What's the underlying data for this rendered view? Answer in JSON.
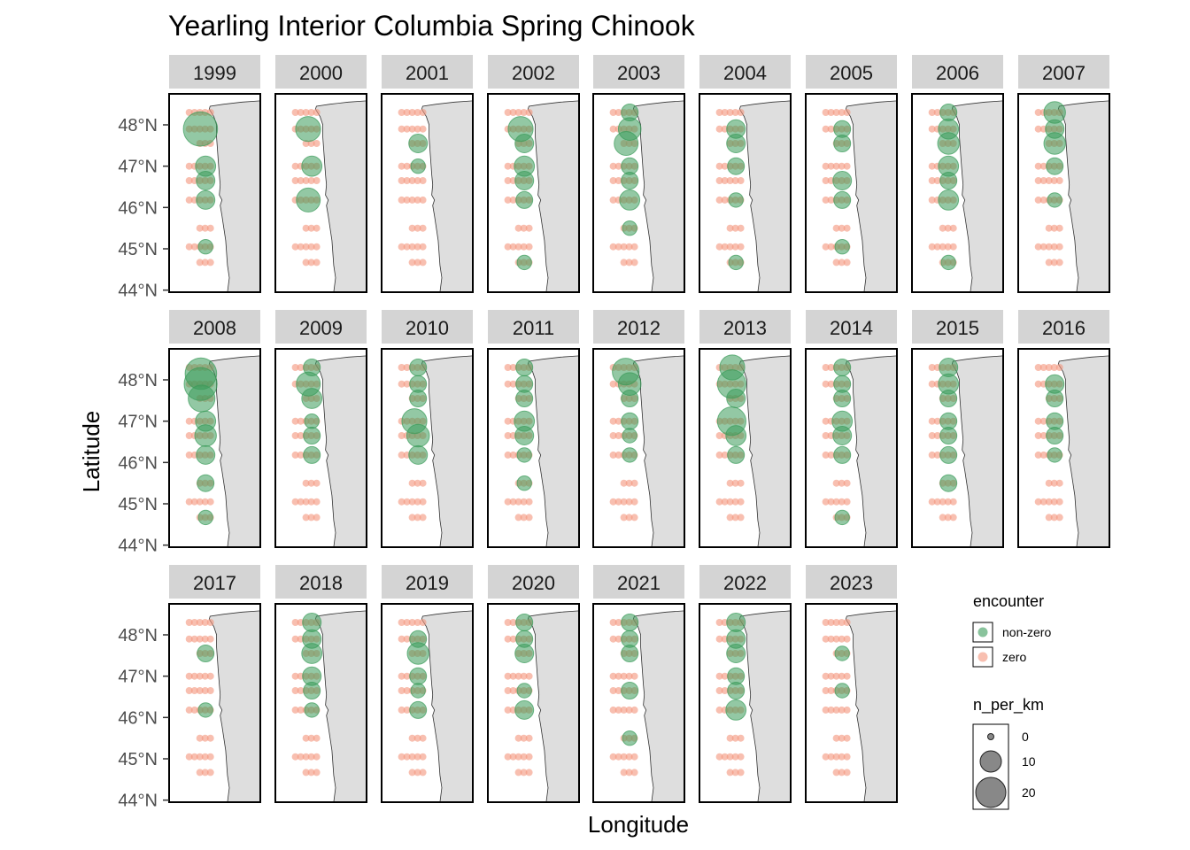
{
  "chart_data": {
    "type": "scatter",
    "title": "Yearling Interior Columbia Spring Chinook",
    "xlabel": "Longitude",
    "ylabel": "Latitude",
    "ylim": [
      43.95,
      48.75
    ],
    "y_ticks": [
      44,
      45,
      46,
      47,
      48
    ],
    "y_tick_labels": [
      "44°N",
      "45°N",
      "46°N",
      "47°N",
      "48°N"
    ],
    "grid": false,
    "facet_layout": {
      "columns": 9,
      "rows": 3
    },
    "colors": {
      "non_zero": "#3a9b5a",
      "zero": "#f4957c",
      "land": "#dedede",
      "strip": "#d4d4d4"
    },
    "legend": {
      "placement": "right",
      "encounter": {
        "title": "encounter",
        "entries": [
          "non-zero",
          "zero"
        ]
      },
      "size": {
        "title": "n_per_km",
        "entries": [
          0,
          10,
          20
        ]
      }
    },
    "station_lines_lat": [
      48.3,
      47.9,
      47.55,
      47.0,
      46.65,
      46.18,
      45.5,
      45.05,
      44.67
    ],
    "panels": [
      {
        "year": "1999",
        "encounters": [
          {
            "lat": 47.9,
            "n": 20
          },
          {
            "lat": 47.0,
            "n": 4
          },
          {
            "lat": 46.65,
            "n": 3
          },
          {
            "lat": 46.18,
            "n": 3
          },
          {
            "lat": 45.05,
            "n": 1
          }
        ]
      },
      {
        "year": "2000",
        "encounters": [
          {
            "lat": 47.9,
            "n": 8
          },
          {
            "lat": 47.0,
            "n": 4
          },
          {
            "lat": 46.18,
            "n": 7
          }
        ]
      },
      {
        "year": "2001",
        "encounters": [
          {
            "lat": 47.55,
            "n": 3
          },
          {
            "lat": 47.0,
            "n": 1
          }
        ]
      },
      {
        "year": "2002",
        "encounters": [
          {
            "lat": 47.9,
            "n": 8
          },
          {
            "lat": 47.55,
            "n": 3
          },
          {
            "lat": 47.0,
            "n": 4
          },
          {
            "lat": 46.65,
            "n": 3
          },
          {
            "lat": 46.18,
            "n": 2
          },
          {
            "lat": 44.67,
            "n": 1
          }
        ]
      },
      {
        "year": "2003",
        "encounters": [
          {
            "lat": 48.3,
            "n": 2
          },
          {
            "lat": 47.9,
            "n": 6
          },
          {
            "lat": 47.55,
            "n": 7
          },
          {
            "lat": 47.0,
            "n": 2
          },
          {
            "lat": 46.65,
            "n": 2
          },
          {
            "lat": 46.18,
            "n": 4
          },
          {
            "lat": 45.5,
            "n": 1
          }
        ]
      },
      {
        "year": "2004",
        "encounters": [
          {
            "lat": 47.9,
            "n": 3
          },
          {
            "lat": 47.55,
            "n": 3
          },
          {
            "lat": 47.0,
            "n": 2
          },
          {
            "lat": 46.18,
            "n": 1
          },
          {
            "lat": 44.67,
            "n": 1
          }
        ]
      },
      {
        "year": "2005",
        "encounters": [
          {
            "lat": 47.9,
            "n": 2
          },
          {
            "lat": 47.55,
            "n": 2
          },
          {
            "lat": 46.65,
            "n": 3
          },
          {
            "lat": 46.18,
            "n": 2
          },
          {
            "lat": 45.05,
            "n": 1
          }
        ]
      },
      {
        "year": "2006",
        "encounters": [
          {
            "lat": 48.3,
            "n": 2
          },
          {
            "lat": 47.9,
            "n": 4
          },
          {
            "lat": 47.55,
            "n": 5
          },
          {
            "lat": 47.0,
            "n": 4
          },
          {
            "lat": 46.65,
            "n": 2
          },
          {
            "lat": 46.18,
            "n": 4
          },
          {
            "lat": 44.67,
            "n": 1
          }
        ]
      },
      {
        "year": "2007",
        "encounters": [
          {
            "lat": 48.3,
            "n": 5
          },
          {
            "lat": 47.9,
            "n": 3
          },
          {
            "lat": 47.55,
            "n": 5
          },
          {
            "lat": 47.0,
            "n": 2
          },
          {
            "lat": 46.18,
            "n": 1
          }
        ]
      },
      {
        "year": "2008",
        "encounters": [
          {
            "lat": 48.15,
            "n": 16
          },
          {
            "lat": 47.9,
            "n": 18
          },
          {
            "lat": 47.55,
            "n": 10
          },
          {
            "lat": 47.0,
            "n": 4
          },
          {
            "lat": 46.65,
            "n": 5
          },
          {
            "lat": 46.18,
            "n": 3
          },
          {
            "lat": 45.5,
            "n": 2
          },
          {
            "lat": 44.67,
            "n": 1
          }
        ]
      },
      {
        "year": "2009",
        "encounters": [
          {
            "lat": 48.3,
            "n": 2
          },
          {
            "lat": 47.9,
            "n": 7
          },
          {
            "lat": 47.55,
            "n": 4
          },
          {
            "lat": 47.0,
            "n": 1
          },
          {
            "lat": 46.65,
            "n": 2
          },
          {
            "lat": 46.18,
            "n": 2
          }
        ]
      },
      {
        "year": "2010",
        "encounters": [
          {
            "lat": 48.3,
            "n": 2
          },
          {
            "lat": 47.9,
            "n": 2
          },
          {
            "lat": 47.55,
            "n": 2
          },
          {
            "lat": 47.0,
            "n": 8
          },
          {
            "lat": 46.65,
            "n": 6
          },
          {
            "lat": 46.18,
            "n": 3
          }
        ]
      },
      {
        "year": "2011",
        "encounters": [
          {
            "lat": 48.3,
            "n": 2
          },
          {
            "lat": 47.9,
            "n": 2
          },
          {
            "lat": 47.55,
            "n": 2
          },
          {
            "lat": 47.0,
            "n": 4
          },
          {
            "lat": 46.65,
            "n": 3
          },
          {
            "lat": 46.18,
            "n": 1
          },
          {
            "lat": 45.5,
            "n": 1
          }
        ]
      },
      {
        "year": "2012",
        "encounters": [
          {
            "lat": 48.2,
            "n": 10
          },
          {
            "lat": 47.9,
            "n": 6
          },
          {
            "lat": 47.55,
            "n": 2
          },
          {
            "lat": 47.0,
            "n": 2
          },
          {
            "lat": 46.65,
            "n": 1
          },
          {
            "lat": 46.18,
            "n": 1
          }
        ]
      },
      {
        "year": "2013",
        "encounters": [
          {
            "lat": 48.3,
            "n": 8
          },
          {
            "lat": 47.9,
            "n": 12
          },
          {
            "lat": 47.55,
            "n": 3
          },
          {
            "lat": 47.0,
            "n": 12
          },
          {
            "lat": 46.65,
            "n": 4
          },
          {
            "lat": 46.18,
            "n": 2
          }
        ]
      },
      {
        "year": "2014",
        "encounters": [
          {
            "lat": 48.3,
            "n": 2
          },
          {
            "lat": 47.9,
            "n": 2
          },
          {
            "lat": 47.55,
            "n": 2
          },
          {
            "lat": 47.0,
            "n": 4
          },
          {
            "lat": 46.65,
            "n": 3
          },
          {
            "lat": 46.18,
            "n": 2
          },
          {
            "lat": 44.67,
            "n": 1
          }
        ]
      },
      {
        "year": "2015",
        "encounters": [
          {
            "lat": 48.3,
            "n": 3
          },
          {
            "lat": 47.9,
            "n": 4
          },
          {
            "lat": 47.55,
            "n": 2
          },
          {
            "lat": 47.0,
            "n": 2
          },
          {
            "lat": 46.65,
            "n": 2
          },
          {
            "lat": 46.18,
            "n": 2
          },
          {
            "lat": 45.5,
            "n": 2
          }
        ]
      },
      {
        "year": "2016",
        "encounters": [
          {
            "lat": 47.9,
            "n": 3
          },
          {
            "lat": 47.55,
            "n": 2
          },
          {
            "lat": 47.0,
            "n": 2
          },
          {
            "lat": 46.65,
            "n": 2
          },
          {
            "lat": 46.18,
            "n": 1
          }
        ]
      },
      {
        "year": "2017",
        "encounters": [
          {
            "lat": 47.55,
            "n": 2
          },
          {
            "lat": 46.18,
            "n": 1
          }
        ]
      },
      {
        "year": "2018",
        "encounters": [
          {
            "lat": 48.3,
            "n": 3
          },
          {
            "lat": 47.9,
            "n": 3
          },
          {
            "lat": 47.55,
            "n": 4
          },
          {
            "lat": 47.0,
            "n": 3
          },
          {
            "lat": 46.65,
            "n": 2
          },
          {
            "lat": 46.18,
            "n": 1
          }
        ]
      },
      {
        "year": "2019",
        "encounters": [
          {
            "lat": 47.9,
            "n": 2
          },
          {
            "lat": 47.55,
            "n": 5
          },
          {
            "lat": 47.0,
            "n": 2
          },
          {
            "lat": 46.65,
            "n": 1
          },
          {
            "lat": 46.18,
            "n": 2
          }
        ]
      },
      {
        "year": "2020",
        "encounters": [
          {
            "lat": 48.3,
            "n": 2
          },
          {
            "lat": 47.9,
            "n": 2
          },
          {
            "lat": 47.55,
            "n": 3
          },
          {
            "lat": 46.65,
            "n": 1
          },
          {
            "lat": 46.18,
            "n": 3
          }
        ]
      },
      {
        "year": "2021",
        "encounters": [
          {
            "lat": 48.3,
            "n": 2
          },
          {
            "lat": 47.9,
            "n": 2
          },
          {
            "lat": 47.55,
            "n": 2
          },
          {
            "lat": 46.65,
            "n": 2
          },
          {
            "lat": 45.5,
            "n": 1
          }
        ]
      },
      {
        "year": "2022",
        "encounters": [
          {
            "lat": 48.3,
            "n": 3
          },
          {
            "lat": 47.9,
            "n": 3
          },
          {
            "lat": 47.55,
            "n": 3
          },
          {
            "lat": 47.0,
            "n": 2
          },
          {
            "lat": 46.65,
            "n": 2
          },
          {
            "lat": 46.18,
            "n": 4
          }
        ]
      },
      {
        "year": "2023",
        "encounters": [
          {
            "lat": 47.55,
            "n": 1
          },
          {
            "lat": 46.65,
            "n": 1
          }
        ]
      }
    ]
  }
}
